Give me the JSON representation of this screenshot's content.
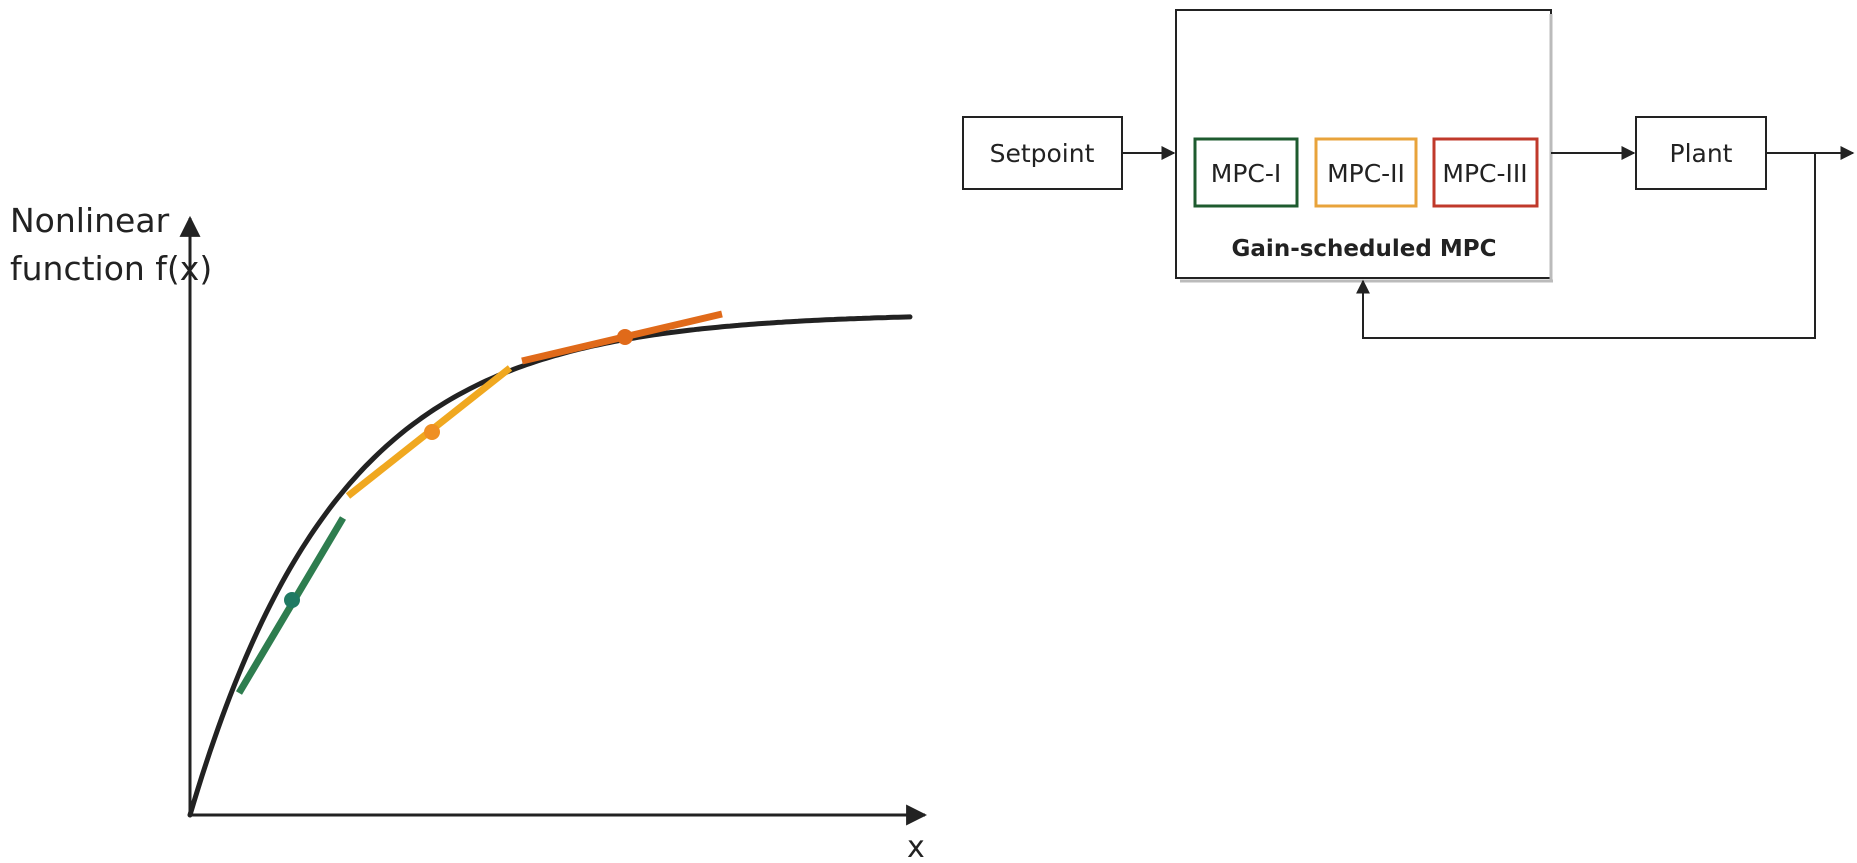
{
  "plot": {
    "y_axis_label_line1": "Nonlinear",
    "y_axis_label_line2": "function f(x)",
    "x_axis_label": "x",
    "curve_color": "#222222",
    "operating_points": [
      {
        "name": "point-1",
        "color": "#2e7d4f",
        "dot_color": "#1f7a62"
      },
      {
        "name": "point-2",
        "color": "#f0a820",
        "dot_color": "#ef8f22"
      },
      {
        "name": "point-3",
        "color": "#e06a1a",
        "dot_color": "#e06a1a"
      }
    ]
  },
  "diagram": {
    "setpoint_label": "Setpoint",
    "plant_label": "Plant",
    "controller_caption": "Gain-scheduled MPC",
    "controllers": [
      {
        "label": "MPC-I",
        "border_color": "#1e5b2f"
      },
      {
        "label": "MPC-II",
        "border_color": "#e8a33b"
      },
      {
        "label": "MPC-III",
        "border_color": "#c0392b"
      }
    ]
  }
}
